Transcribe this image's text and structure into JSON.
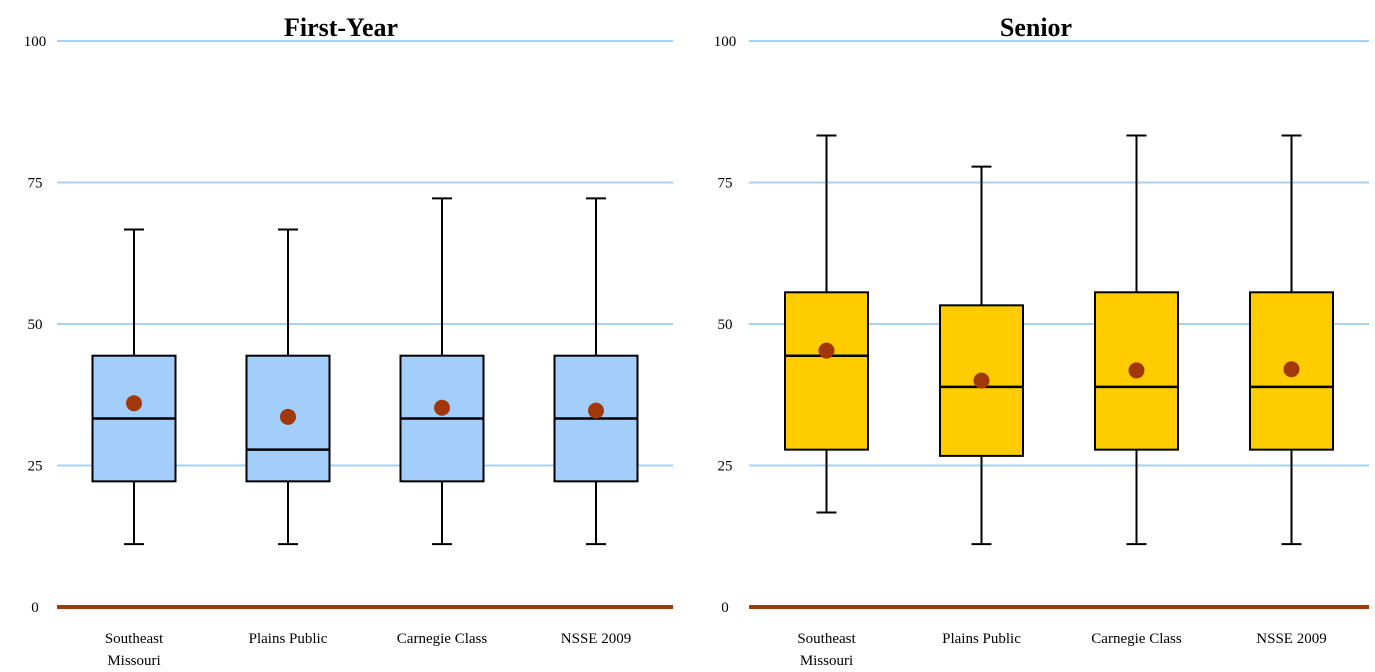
{
  "colors": {
    "gridline": "#a9d0f5",
    "baseline": "#a0380a",
    "first_year_box": "#a3cdfb",
    "senior_box": "#ffcc00",
    "mean_dot": "#a0380a",
    "stroke": "#000000"
  },
  "chart_data": [
    {
      "type": "boxplot",
      "title": "First-Year",
      "xlabel": "",
      "ylabel": "",
      "ylim": [
        0,
        100
      ],
      "yticks": [
        0,
        25,
        50,
        75,
        100
      ],
      "grid": true,
      "box_color": "#a3cdfb",
      "categories": [
        {
          "lines": [
            "Southeast",
            "Missouri"
          ]
        },
        {
          "lines": [
            "Plains Public"
          ]
        },
        {
          "lines": [
            "Carnegie Class"
          ]
        },
        {
          "lines": [
            "NSSE 2009"
          ]
        }
      ],
      "stats": [
        {
          "min": 11.1,
          "q1": 22.2,
          "median": 33.3,
          "q3": 44.4,
          "max": 66.7,
          "mean": 36.0
        },
        {
          "min": 11.1,
          "q1": 22.2,
          "median": 27.8,
          "q3": 44.4,
          "max": 66.7,
          "mean": 33.6
        },
        {
          "min": 11.1,
          "q1": 22.2,
          "median": 33.3,
          "q3": 44.4,
          "max": 72.2,
          "mean": 35.2
        },
        {
          "min": 11.1,
          "q1": 22.2,
          "median": 33.3,
          "q3": 44.4,
          "max": 72.2,
          "mean": 34.7
        }
      ]
    },
    {
      "type": "boxplot",
      "title": "Senior",
      "xlabel": "",
      "ylabel": "",
      "ylim": [
        0,
        100
      ],
      "yticks": [
        0,
        25,
        50,
        75,
        100
      ],
      "grid": true,
      "box_color": "#ffcc00",
      "categories": [
        {
          "lines": [
            "Southeast",
            "Missouri"
          ]
        },
        {
          "lines": [
            "Plains Public"
          ]
        },
        {
          "lines": [
            "Carnegie Class"
          ]
        },
        {
          "lines": [
            "NSSE 2009"
          ]
        }
      ],
      "stats": [
        {
          "min": 16.7,
          "q1": 27.8,
          "median": 44.4,
          "q3": 55.6,
          "max": 83.3,
          "mean": 45.3
        },
        {
          "min": 11.1,
          "q1": 26.7,
          "median": 38.9,
          "q3": 53.3,
          "max": 77.8,
          "mean": 40.0
        },
        {
          "min": 11.1,
          "q1": 27.8,
          "median": 38.9,
          "q3": 55.6,
          "max": 83.3,
          "mean": 41.8
        },
        {
          "min": 11.1,
          "q1": 27.8,
          "median": 38.9,
          "q3": 55.6,
          "max": 83.3,
          "mean": 42.0
        }
      ]
    }
  ]
}
